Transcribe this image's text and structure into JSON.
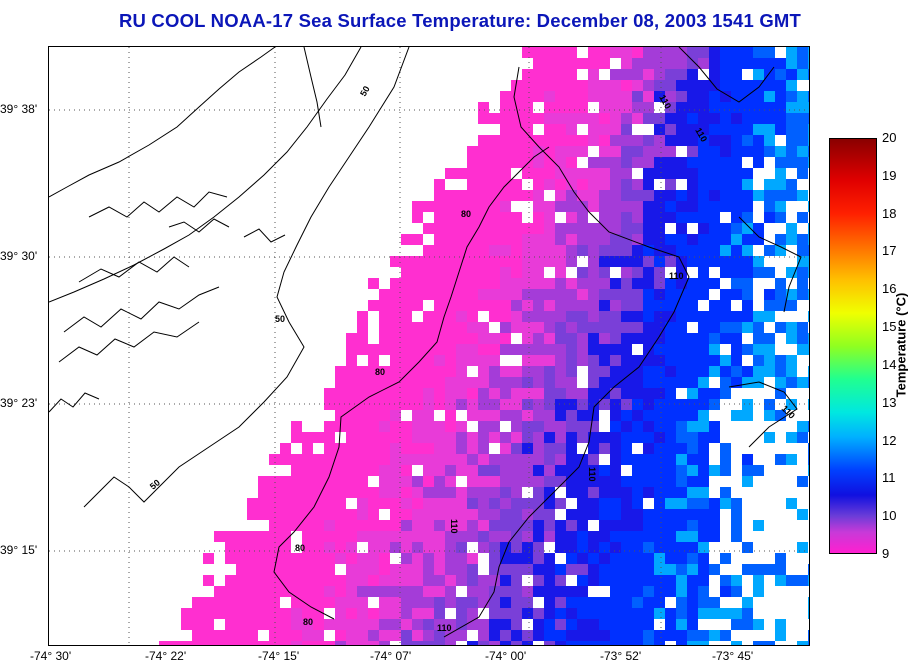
{
  "title": "RU COOL  NOAA-17  Sea Surface Temperature:  December 08, 2003 1541 GMT",
  "map": {
    "lat_labels": [
      "39° 38'",
      "39° 30'",
      "39° 23'",
      "39° 15'"
    ],
    "lon_labels": [
      "-74° 30'",
      "-74° 22'",
      "-74° 15'",
      "-74° 07'",
      "-74° 00'",
      "-73° 52'",
      "-73° 45'"
    ],
    "contour_labels": [
      "50",
      "80",
      "110"
    ],
    "grid": true,
    "coastline_color": "#000000"
  },
  "colorbar": {
    "label": "Temperature (°C)",
    "ticks": [
      "20",
      "19",
      "18",
      "17",
      "16",
      "15",
      "14",
      "13",
      "12",
      "11",
      "10",
      "9"
    ],
    "min": 9,
    "max": 20
  },
  "colors": {
    "title": "#0b16b8",
    "sst_9": "#ff2fd0",
    "sst_10": "#7a3fd8",
    "sst_10_5": "#1818e8",
    "sst_11": "#0030ff",
    "sst_12": "#00a8ff"
  }
}
